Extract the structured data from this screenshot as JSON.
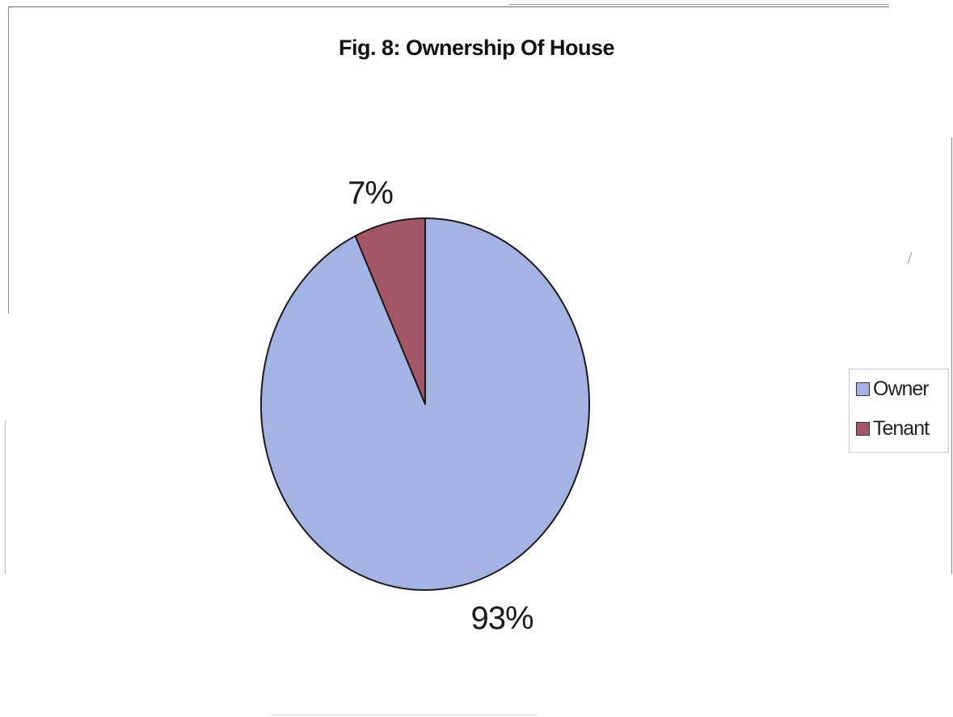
{
  "chart_data": {
    "type": "pie",
    "title": "Fig. 8: Ownership  Of House",
    "categories": [
      "Owner",
      "Tenant"
    ],
    "values": [
      93,
      7
    ],
    "data_labels": [
      "93%",
      "7%"
    ],
    "colors": [
      "#a3b3e3",
      "#a35766"
    ],
    "legend": {
      "position": "right",
      "entries": [
        "Owner",
        "Tenant"
      ]
    },
    "start_angle_deg": 0,
    "direction": "clockwise",
    "plot_background": "#ffffff"
  }
}
